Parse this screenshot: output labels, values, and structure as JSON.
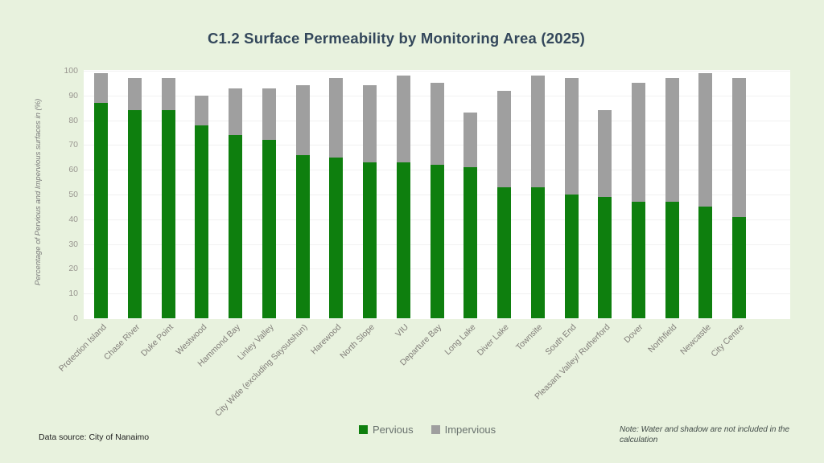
{
  "title": "C1.2 Surface Permeability by Monitoring Area (2025)",
  "footer": {
    "data_source": "Data source: City of Nanaimo",
    "note": "Note: Water and shadow are not included in the calculation"
  },
  "chart_data": {
    "type": "bar",
    "stacked": true,
    "title": "C1.2 Surface Permeability by Monitoring Area (2025)",
    "ylabel": "Percentage of Pervious and Impervious surfaces in (%)",
    "xlabel": "",
    "ylim": [
      0,
      100
    ],
    "y_ticks": [
      0,
      10,
      20,
      30,
      40,
      50,
      60,
      70,
      80,
      90,
      100
    ],
    "grid": true,
    "legend_position": "bottom-center",
    "categories": [
      "Protection Island",
      "Chase River",
      "Duke Point",
      "Westwood",
      "Hammond Bay",
      "Linley Valley",
      "City Wide (excluding Saysutshun)",
      "Harewood",
      "North Slope",
      "VIU",
      "Departure Bay",
      "Long Lake",
      "Diver Lake",
      "Townsite",
      "South End",
      "Pleasant Valley/ Rutherford",
      "Dover",
      "Northfield",
      "Newcastle",
      "City Centre"
    ],
    "series": [
      {
        "name": "Pervious",
        "color": "#0e7f0e",
        "values": [
          87,
          84,
          84,
          78,
          74,
          72,
          66,
          65,
          63,
          63,
          62,
          61,
          53,
          53,
          50,
          49,
          47,
          47,
          45,
          41
        ]
      },
      {
        "name": "Impervious",
        "color": "#9f9f9f",
        "values": [
          12,
          13,
          13,
          12,
          19,
          21,
          28,
          32,
          31,
          35,
          33,
          22,
          39,
          45,
          47,
          35,
          48,
          50,
          54,
          56
        ]
      }
    ]
  }
}
